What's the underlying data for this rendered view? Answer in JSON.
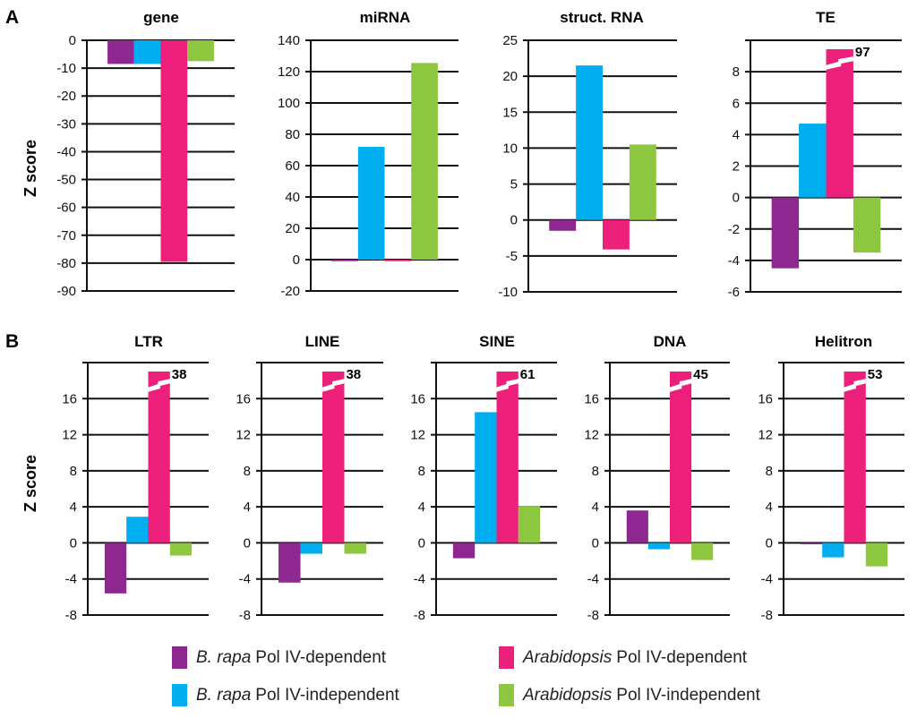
{
  "panels": [
    {
      "letter": "A",
      "ylabel": "Z score"
    },
    {
      "letter": "B",
      "ylabel": "Z score"
    }
  ],
  "legend": [
    {
      "italic": "B. rapa",
      "rest": "Pol IV-dependent",
      "color": "#8e278f"
    },
    {
      "italic": "Arabidopsis",
      "rest": "Pol IV-dependent",
      "color": "#ec1f7a"
    },
    {
      "italic": "B. rapa",
      "rest": "Pol IV-independent",
      "color": "#00aeef"
    },
    {
      "italic": "Arabidopsis",
      "rest": "Pol IV-independent",
      "color": "#8dc63f"
    }
  ],
  "chart_data": [
    {
      "type": "bar",
      "panel": "A",
      "title": "gene",
      "ylabel": "Z score",
      "ylim": [
        -90,
        0
      ],
      "yticks": [
        0,
        -10,
        -20,
        -30,
        -40,
        -50,
        -60,
        -70,
        -80,
        -90
      ],
      "series": [
        {
          "name": "B. rapa Pol IV-dependent",
          "color": "#8e278f",
          "value": -8.5
        },
        {
          "name": "B. rapa Pol IV-independent",
          "color": "#00aeef",
          "value": -8.5
        },
        {
          "name": "Arabidopsis Pol IV-dependent",
          "color": "#ec1f7a",
          "value": -79.5
        },
        {
          "name": "Arabidopsis Pol IV-independent",
          "color": "#8dc63f",
          "value": -7.5
        }
      ],
      "grid": true
    },
    {
      "type": "bar",
      "panel": "A",
      "title": "miRNA",
      "ylabel": "Z score",
      "ylim": [
        -20,
        140
      ],
      "yticks": [
        140,
        120,
        100,
        80,
        60,
        40,
        20,
        0,
        -20
      ],
      "series": [
        {
          "name": "B. rapa Pol IV-dependent",
          "color": "#8e278f",
          "value": -1
        },
        {
          "name": "B. rapa Pol IV-independent",
          "color": "#00aeef",
          "value": 72
        },
        {
          "name": "Arabidopsis Pol IV-dependent",
          "color": "#ec1f7a",
          "value": -1
        },
        {
          "name": "Arabidopsis Pol IV-independent",
          "color": "#8dc63f",
          "value": 125.5
        }
      ],
      "grid": true
    },
    {
      "type": "bar",
      "panel": "A",
      "title": "struct. RNA",
      "ylabel": "Z score",
      "ylim": [
        -10,
        25
      ],
      "yticks": [
        25,
        20,
        15,
        10,
        5,
        0,
        -5,
        -10
      ],
      "series": [
        {
          "name": "B. rapa Pol IV-dependent",
          "color": "#8e278f",
          "value": -1.5
        },
        {
          "name": "B. rapa Pol IV-independent",
          "color": "#00aeef",
          "value": 21.5
        },
        {
          "name": "Arabidopsis Pol IV-dependent",
          "color": "#ec1f7a",
          "value": -4.1
        },
        {
          "name": "Arabidopsis Pol IV-independent",
          "color": "#8dc63f",
          "value": 10.5
        }
      ],
      "grid": true
    },
    {
      "type": "bar",
      "panel": "A",
      "title": "TE",
      "ylabel": "Z score",
      "ylim": [
        -6,
        10
      ],
      "yticks": [
        8,
        6,
        4,
        2,
        0,
        -2,
        -4,
        -6
      ],
      "series": [
        {
          "name": "B. rapa Pol IV-dependent",
          "color": "#8e278f",
          "value": -4.5
        },
        {
          "name": "B. rapa Pol IV-independent",
          "color": "#00aeef",
          "value": 4.7
        },
        {
          "name": "Arabidopsis Pol IV-dependent",
          "color": "#ec1f7a",
          "value": 97,
          "broken": true,
          "label": "97"
        },
        {
          "name": "Arabidopsis Pol IV-independent",
          "color": "#8dc63f",
          "value": -3.5
        }
      ],
      "grid": true
    },
    {
      "type": "bar",
      "panel": "B",
      "title": "LTR",
      "ylabel": "Z score",
      "ylim": [
        -8,
        20
      ],
      "yticks": [
        16,
        12,
        8,
        4,
        0,
        -4,
        -8
      ],
      "series": [
        {
          "name": "B. rapa Pol IV-dependent",
          "color": "#8e278f",
          "value": -5.6
        },
        {
          "name": "B. rapa Pol IV-independent",
          "color": "#00aeef",
          "value": 2.9
        },
        {
          "name": "Arabidopsis Pol IV-dependent",
          "color": "#ec1f7a",
          "value": 38,
          "broken": true,
          "label": "38"
        },
        {
          "name": "Arabidopsis Pol IV-independent",
          "color": "#8dc63f",
          "value": -1.4
        }
      ],
      "grid": true
    },
    {
      "type": "bar",
      "panel": "B",
      "title": "LINE",
      "ylabel": "Z score",
      "ylim": [
        -8,
        20
      ],
      "yticks": [
        16,
        12,
        8,
        4,
        0,
        -4,
        -8
      ],
      "series": [
        {
          "name": "B. rapa Pol IV-dependent",
          "color": "#8e278f",
          "value": -4.4
        },
        {
          "name": "B. rapa Pol IV-independent",
          "color": "#00aeef",
          "value": -1.2
        },
        {
          "name": "Arabidopsis Pol IV-dependent",
          "color": "#ec1f7a",
          "value": 38,
          "broken": true,
          "label": "38"
        },
        {
          "name": "Arabidopsis Pol IV-independent",
          "color": "#8dc63f",
          "value": -1.2
        }
      ],
      "grid": true
    },
    {
      "type": "bar",
      "panel": "B",
      "title": "SINE",
      "ylabel": "Z score",
      "ylim": [
        -8,
        20
      ],
      "yticks": [
        16,
        12,
        8,
        4,
        0,
        -4,
        -8
      ],
      "series": [
        {
          "name": "B. rapa Pol IV-dependent",
          "color": "#8e278f",
          "value": -1.7
        },
        {
          "name": "B. rapa Pol IV-independent",
          "color": "#00aeef",
          "value": 14.5
        },
        {
          "name": "Arabidopsis Pol IV-dependent",
          "color": "#ec1f7a",
          "value": 61,
          "broken": true,
          "label": "61"
        },
        {
          "name": "Arabidopsis Pol IV-independent",
          "color": "#8dc63f",
          "value": 4.1
        }
      ],
      "grid": true
    },
    {
      "type": "bar",
      "panel": "B",
      "title": "DNA",
      "ylabel": "Z score",
      "ylim": [
        -8,
        20
      ],
      "yticks": [
        16,
        12,
        8,
        4,
        0,
        -4,
        -8
      ],
      "series": [
        {
          "name": "B. rapa Pol IV-dependent",
          "color": "#8e278f",
          "value": 3.6
        },
        {
          "name": "B. rapa Pol IV-independent",
          "color": "#00aeef",
          "value": -0.7
        },
        {
          "name": "Arabidopsis Pol IV-dependent",
          "color": "#ec1f7a",
          "value": 45,
          "broken": true,
          "label": "45"
        },
        {
          "name": "Arabidopsis Pol IV-independent",
          "color": "#8dc63f",
          "value": -1.9
        }
      ],
      "grid": true
    },
    {
      "type": "bar",
      "panel": "B",
      "title": "Helitron",
      "ylabel": "Z score",
      "ylim": [
        -8,
        20
      ],
      "yticks": [
        16,
        12,
        8,
        4,
        0,
        -4,
        -8
      ],
      "series": [
        {
          "name": "B. rapa Pol IV-dependent",
          "color": "#8e278f",
          "value": -0.15
        },
        {
          "name": "B. rapa Pol IV-independent",
          "color": "#00aeef",
          "value": -1.6
        },
        {
          "name": "Arabidopsis Pol IV-dependent",
          "color": "#ec1f7a",
          "value": 53,
          "broken": true,
          "label": "53"
        },
        {
          "name": "Arabidopsis Pol IV-independent",
          "color": "#8dc63f",
          "value": -2.6
        }
      ],
      "grid": true
    }
  ]
}
